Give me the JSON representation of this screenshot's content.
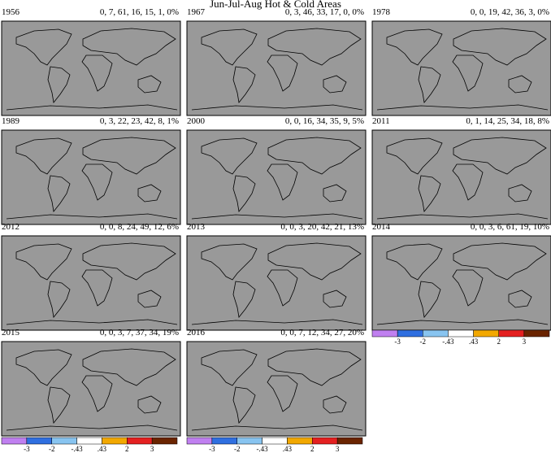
{
  "title": "Jun-Jul-Aug Hot & Cold Areas",
  "panels": [
    {
      "year": "1956",
      "stats": "0, 7, 61, 16, 15, 1, 0%"
    },
    {
      "year": "1967",
      "stats": "0, 3, 46, 33, 17, 0, 0%"
    },
    {
      "year": "1978",
      "stats": "0, 0, 19, 42, 36, 3, 0%"
    },
    {
      "year": "1989",
      "stats": "0, 3, 22, 23, 42, 8, 1%"
    },
    {
      "year": "2000",
      "stats": "0, 0, 16, 34, 35, 9, 5%"
    },
    {
      "year": "2011",
      "stats": "0, 1, 14, 25, 34, 18, 8%"
    },
    {
      "year": "2012",
      "stats": "0, 0, 8, 24, 49, 12, 6%"
    },
    {
      "year": "2013",
      "stats": "0, 0, 3, 20, 42, 21, 13%"
    },
    {
      "year": "2014",
      "stats": "0, 0, 3, 6, 61, 19, 10%"
    },
    {
      "year": "2015",
      "stats": "0, 0, 3, 7, 37, 34, 19%"
    },
    {
      "year": "2016",
      "stats": "0, 0, 7, 12, 34, 27, 20%"
    }
  ],
  "colorbar": {
    "colors": [
      "#c080f0",
      "#2f6fe0",
      "#88c4f0",
      "#ffffff",
      "#f2a800",
      "#e42020",
      "#6a2400"
    ],
    "labels": [
      "-3",
      "-2",
      "-.43",
      ".43",
      "2",
      "3"
    ]
  }
}
